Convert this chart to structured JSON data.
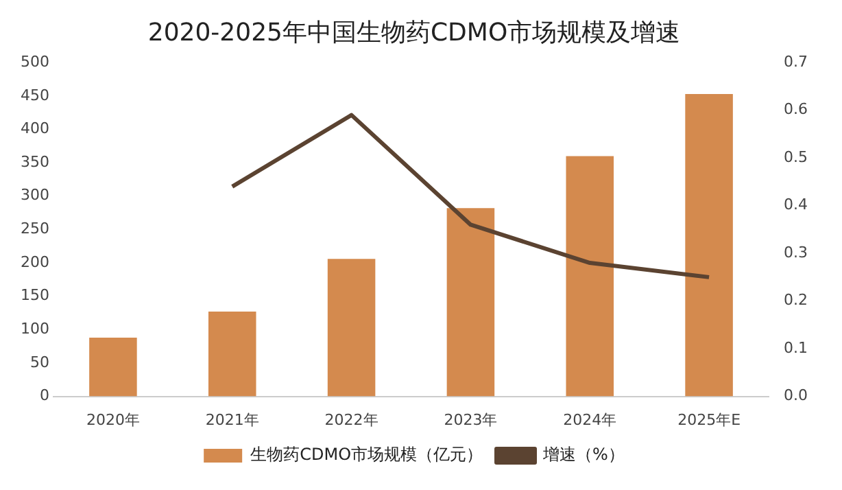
{
  "chart_data": {
    "type": "bar",
    "title": "2020-2025年中国生物药CDMO市场规模及增速",
    "categories": [
      "2020年",
      "2021年",
      "2022年",
      "2023年",
      "2024年",
      "2025年E"
    ],
    "series": [
      {
        "name": "生物药CDMO市场规模（亿元）",
        "color": "#d48a4e",
        "values": [
          88,
          127,
          206,
          282,
          360,
          453
        ]
      },
      {
        "name": "增速（%）",
        "type": "line",
        "axis": "y2",
        "color": "#5b4331",
        "marker": "none",
        "values": [
          null,
          0.44,
          0.59,
          0.36,
          0.28,
          0.25
        ]
      }
    ],
    "ylim": [
      0,
      500
    ],
    "yticks": [
      0,
      50,
      100,
      150,
      200,
      250,
      300,
      350,
      400,
      450,
      500
    ],
    "y2lim": [
      0,
      0.7
    ],
    "y2ticks": [
      {
        "value": 0,
        "label": "0.0"
      },
      {
        "value": 0.1,
        "label": "0.1"
      },
      {
        "value": 0.2,
        "label": "0.2"
      },
      {
        "value": 0.3,
        "label": "0.3"
      },
      {
        "value": 0.4,
        "label": "0.4"
      },
      {
        "value": 0.5,
        "label": "0.5"
      },
      {
        "value": 0.6,
        "label": "0.6"
      },
      {
        "value": 0.7,
        "label": "0.7"
      }
    ],
    "grid": false,
    "legend": "bottom"
  }
}
